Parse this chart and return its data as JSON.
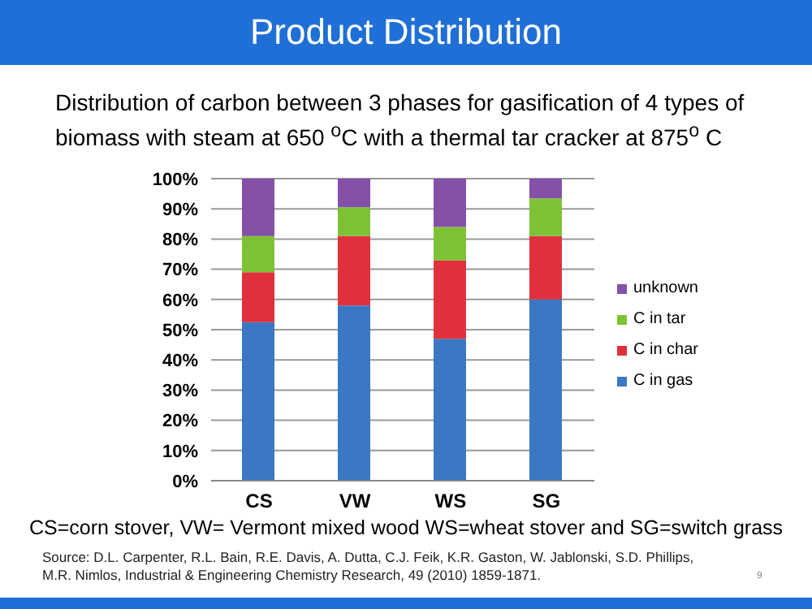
{
  "chart_data": {
    "type": "bar",
    "title": "Product Distribution",
    "subtitle": "Distribution of carbon between 3 phases for gasification of 4 types of biomass with steam at 650 $^{o}$C with a thermal tar cracker at 875$^{o}$ C",
    "categories": [
      "CS",
      "VW",
      "WS",
      "SG"
    ],
    "series": [
      {
        "name": "C in gas",
        "color": "#3a78c4",
        "values": [
          52.5,
          58,
          47,
          60
        ]
      },
      {
        "name": "C in char",
        "color": "#e0303c",
        "values": [
          16.5,
          23,
          26,
          21
        ]
      },
      {
        "name": "C in tar",
        "color": "#7dc234",
        "values": [
          12,
          9.5,
          11,
          12.5
        ]
      },
      {
        "name": "unknown",
        "color": "#8450a8",
        "values": [
          19,
          9.5,
          16,
          6.5
        ]
      }
    ],
    "stacked": true,
    "ylim": [
      0,
      100
    ],
    "yticks": [
      {
        "value": 0,
        "label": "0%"
      },
      {
        "value": 10,
        "label": "10%"
      },
      {
        "value": 20,
        "label": "20%"
      },
      {
        "value": 30,
        "label": "30%"
      },
      {
        "value": 40,
        "label": "40%"
      },
      {
        "value": 50,
        "label": "50%"
      },
      {
        "value": 60,
        "label": "60%"
      },
      {
        "value": 70,
        "label": "70%"
      },
      {
        "value": 80,
        "label": "80%"
      },
      {
        "value": 90,
        "label": "90%"
      },
      {
        "value": 100,
        "label": "100%"
      }
    ],
    "grid": "y",
    "legend": "right",
    "annotations": [
      "CS=corn stover, VW= Vermont mixed wood WS=wheat stover and SG=switch grass",
      "Source: D.L. Carpenter, R.L. Bain, R.E. Davis, A. Dutta, C.J. Feik, K.R. Gaston, W. Jablonski, S.D. Phillips, M.R. Nimlos, Industrial & Engineering Chemistry Research, 49 (2010) 1859-1871.",
      "9"
    ]
  }
}
